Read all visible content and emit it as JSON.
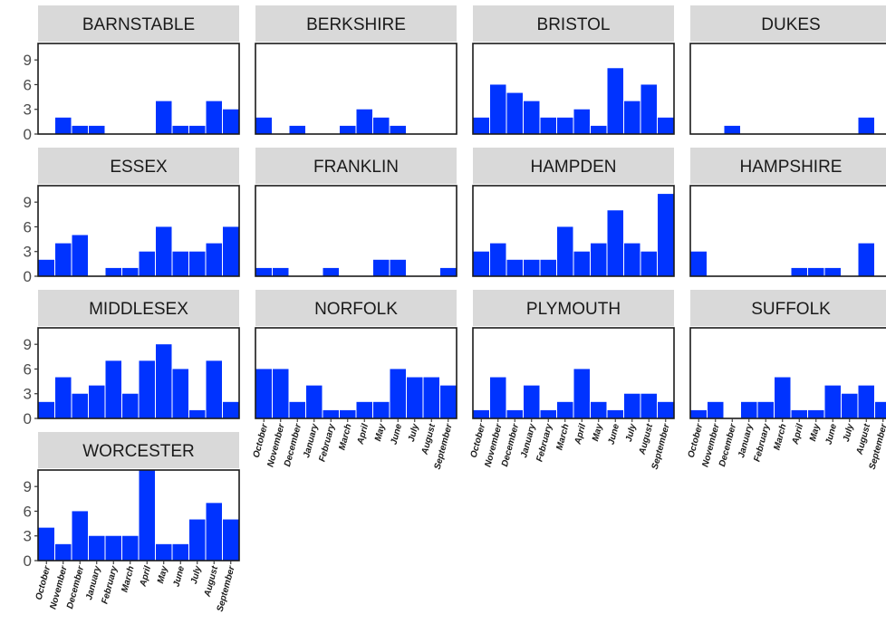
{
  "chart_data": {
    "type": "bar",
    "facet_layout": "wrap",
    "categories": [
      "October",
      "November",
      "December",
      "January",
      "February",
      "March",
      "April",
      "May",
      "June",
      "July",
      "August",
      "September"
    ],
    "y_ticks": [
      "0",
      "3",
      "6",
      "9"
    ],
    "ylim": [
      0,
      11
    ],
    "bar_color": "#0033ff",
    "strip_color": "#d9d9d9",
    "panels": [
      {
        "name": "BARNSTABLE",
        "values": [
          0,
          2,
          1,
          1,
          0,
          0,
          0,
          4,
          1,
          1,
          4,
          3
        ]
      },
      {
        "name": "BERKSHIRE",
        "values": [
          2,
          0,
          1,
          0,
          0,
          1,
          3,
          2,
          1,
          0,
          0,
          0
        ]
      },
      {
        "name": "BRISTOL",
        "values": [
          2,
          6,
          5,
          4,
          2,
          2,
          3,
          1,
          8,
          4,
          6,
          2
        ]
      },
      {
        "name": "DUKES",
        "values": [
          0,
          0,
          1,
          0,
          0,
          0,
          0,
          0,
          0,
          0,
          2,
          0
        ]
      },
      {
        "name": "ESSEX",
        "values": [
          2,
          4,
          5,
          0,
          1,
          1,
          3,
          6,
          3,
          3,
          4,
          6
        ]
      },
      {
        "name": "FRANKLIN",
        "values": [
          1,
          1,
          0,
          0,
          1,
          0,
          0,
          2,
          2,
          0,
          0,
          1
        ]
      },
      {
        "name": "HAMPDEN",
        "values": [
          3,
          4,
          2,
          2,
          2,
          6,
          3,
          4,
          8,
          4,
          3,
          10
        ]
      },
      {
        "name": "HAMPSHIRE",
        "values": [
          3,
          0,
          0,
          0,
          0,
          0,
          1,
          1,
          1,
          0,
          4,
          0
        ]
      },
      {
        "name": "MIDDLESEX",
        "values": [
          2,
          5,
          3,
          4,
          7,
          3,
          7,
          9,
          6,
          1,
          7,
          2
        ]
      },
      {
        "name": "NORFOLK",
        "values": [
          6,
          6,
          2,
          4,
          1,
          1,
          2,
          2,
          6,
          5,
          5,
          4
        ]
      },
      {
        "name": "PLYMOUTH",
        "values": [
          1,
          5,
          1,
          4,
          1,
          2,
          6,
          2,
          1,
          3,
          3,
          2
        ]
      },
      {
        "name": "SUFFOLK",
        "values": [
          1,
          2,
          0,
          2,
          2,
          5,
          1,
          1,
          4,
          3,
          4,
          2
        ]
      },
      {
        "name": "WORCESTER",
        "values": [
          4,
          2,
          6,
          3,
          3,
          3,
          11,
          2,
          2,
          5,
          7,
          5
        ]
      }
    ]
  }
}
